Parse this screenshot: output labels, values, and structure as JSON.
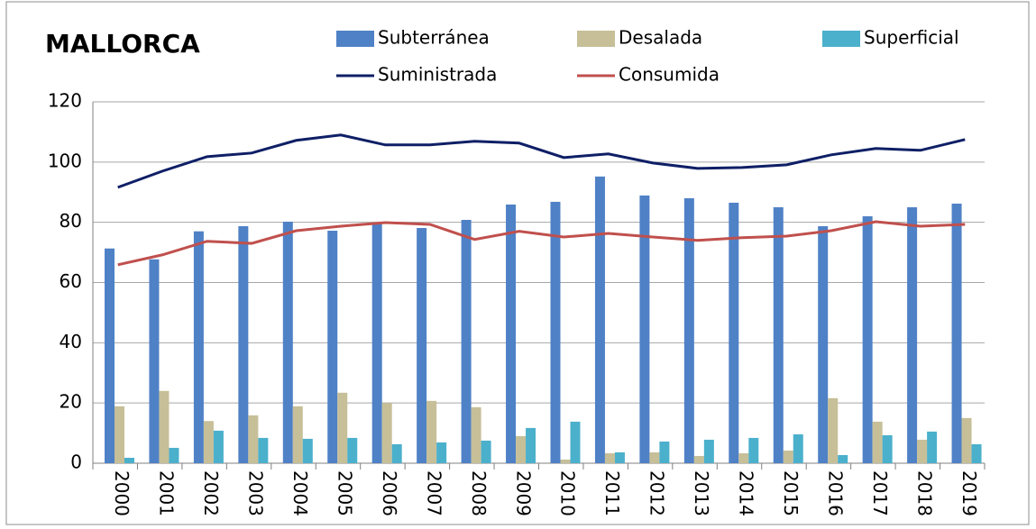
{
  "chart_data": {
    "type": "bar-line",
    "title": "MALLORCA",
    "categories": [
      "2000",
      "2001",
      "2002",
      "2003",
      "2004",
      "2005",
      "2006",
      "2007",
      "2008",
      "2009",
      "2010",
      "2011",
      "2012",
      "2013",
      "2014",
      "2015",
      "2016",
      "2017",
      "2018",
      "2019"
    ],
    "series": [
      {
        "name": "Subterránea",
        "type": "bar",
        "color": "#4f81c6",
        "values": [
          71.3,
          67.7,
          77,
          78.7,
          80.2,
          77.2,
          79.6,
          78.1,
          80.8,
          85.9,
          86.8,
          95.2,
          88.9,
          88,
          86.5,
          85,
          78.7,
          82,
          85,
          86.2
        ]
      },
      {
        "name": "Desalada",
        "type": "bar",
        "color": "#c6bf98",
        "values": [
          18.9,
          24,
          14,
          15.9,
          18.9,
          23.4,
          20,
          20.7,
          18.6,
          9,
          1.2,
          3.3,
          3.6,
          2.4,
          3.3,
          4.2,
          21.6,
          13.8,
          7.8,
          15
        ]
      },
      {
        "name": "Superficial",
        "type": "bar",
        "color": "#4bb0cc",
        "values": [
          1.8,
          5.1,
          10.8,
          8.4,
          8.1,
          8.4,
          6.3,
          6.9,
          7.5,
          11.7,
          13.8,
          3.6,
          7.2,
          7.8,
          8.4,
          9.6,
          2.7,
          9.3,
          10.5,
          6.3
        ]
      },
      {
        "name": "Suministrada",
        "type": "line",
        "color": "#0f1f66",
        "values": [
          91.6,
          97,
          101.8,
          103,
          107.2,
          109,
          105.7,
          105.7,
          106.9,
          106.3,
          101.5,
          102.7,
          99.7,
          97.9,
          98.2,
          99.1,
          102.4,
          104.5,
          103.9,
          107.5
        ]
      },
      {
        "name": "Consumida",
        "type": "line",
        "color": "#c0504d",
        "values": [
          65.9,
          69.2,
          73.7,
          73,
          77.2,
          78.7,
          79.9,
          79.3,
          74.3,
          77,
          75.1,
          76.3,
          75.1,
          74,
          74.9,
          75.4,
          77.2,
          80.2,
          78.7,
          79.3
        ]
      }
    ],
    "ylim": [
      0,
      120
    ],
    "yticks": [
      0,
      20,
      40,
      60,
      80,
      100,
      120
    ],
    "grid": true
  }
}
